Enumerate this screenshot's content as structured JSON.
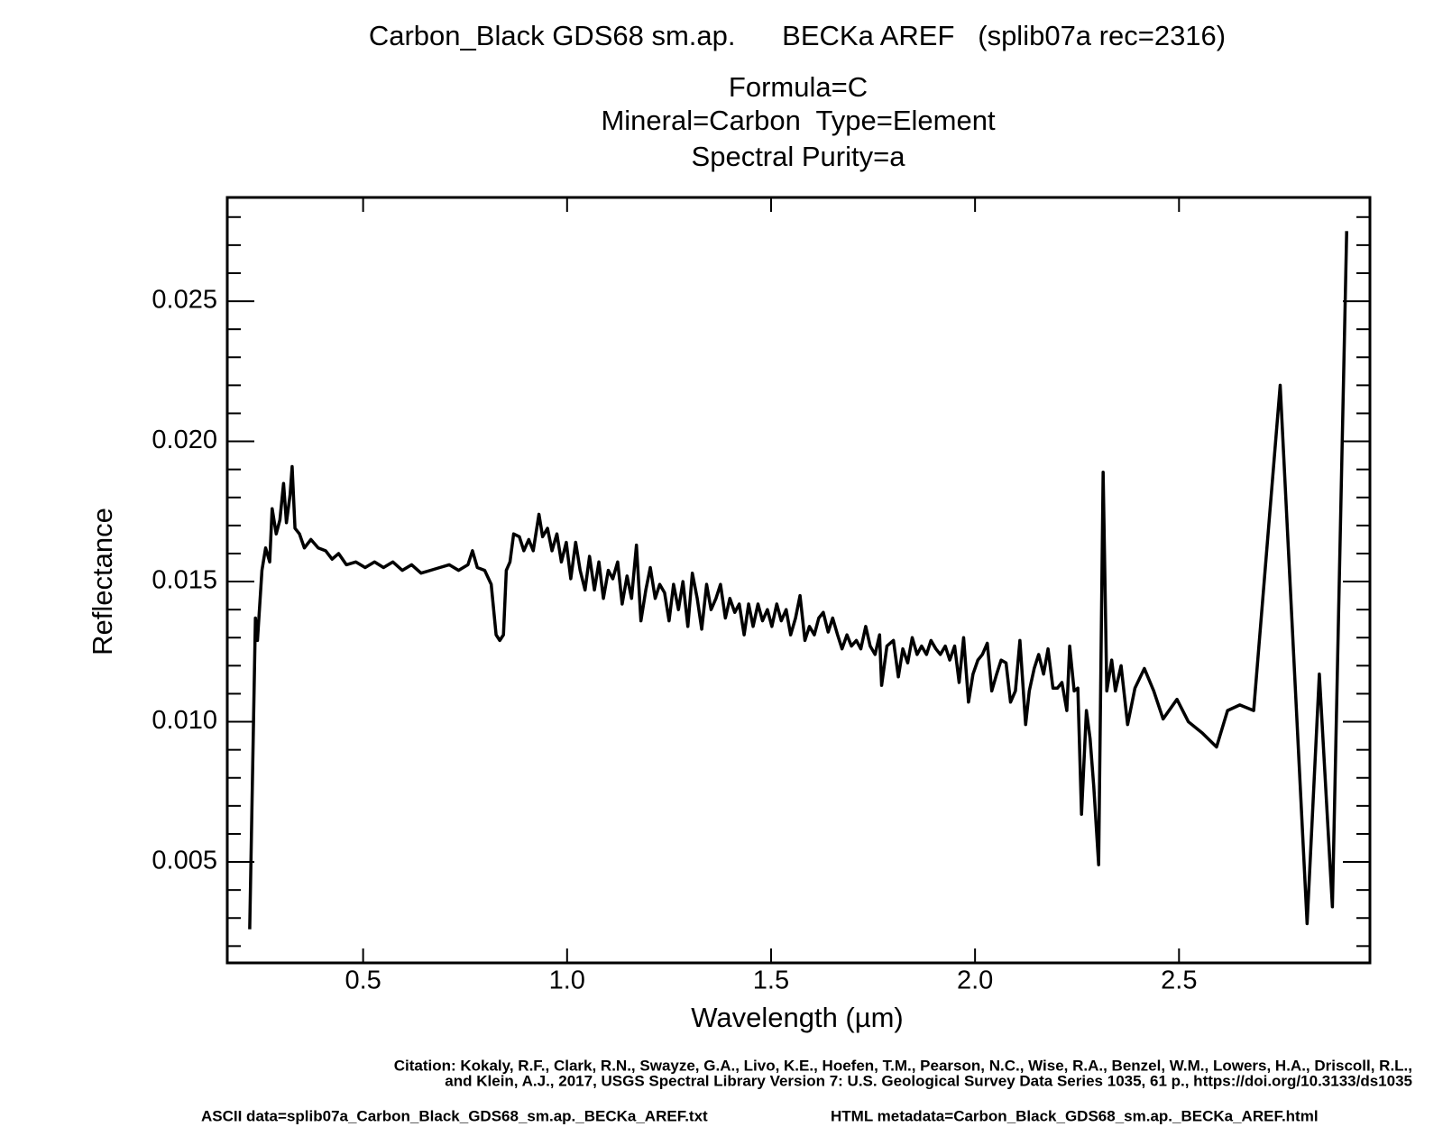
{
  "chart_data": {
    "type": "line",
    "title": "Carbon_Black GDS68 sm.ap.      BECKa AREF   (splib07a rec=2316)",
    "subtitle": [
      "Formula=C",
      "Mineral=Carbon  Type=Element",
      "Spectral Purity=a"
    ],
    "x_label": "Wavelength (µm)",
    "y_label": "Reflectance",
    "citation": [
      "Citation: Kokaly, R.F., Clark, R.N., Swayze, G.A., Livo, K.E., Hoefen, T.M., Pearson, N.C., Wise, R.A., Benzel, W.M., Lowers, H.A., Driscoll, R.L.,",
      "and Klein, A.J., 2017, USGS Spectral Library Version 7: U.S. Geological Survey Data Series 1035, 61 p., https://doi.org/10.3133/ds1035"
    ],
    "ascii_data": "ASCII data=splib07a_Carbon_Black_GDS68_sm.ap._BECKa_AREF.txt",
    "html_metadata": "HTML metadata=Carbon_Black_GDS68_sm.ap._BECKa_AREF.html",
    "color": "#000000",
    "xlim": [
      0.167,
      2.968
    ],
    "ylim": [
      0.0014,
      0.0287
    ],
    "xticks": [
      0.5,
      {
        "value": 1.0,
        "label": "1.0"
      },
      1.5,
      {
        "value": 2.0,
        "label": "2.0"
      },
      2.5
    ],
    "yticks": [
      0.005,
      {
        "value": 0.01,
        "label": "0.010"
      },
      0.015,
      {
        "value": 0.02,
        "label": "0.020"
      },
      0.025
    ],
    "yminorticks": [
      0.002,
      0.003,
      0.004,
      0.006,
      0.007,
      0.008,
      0.009,
      0.011,
      0.012,
      0.013,
      0.014,
      0.016,
      0.017,
      0.018,
      0.019,
      0.021,
      0.022,
      0.023,
      0.024,
      0.026,
      0.027,
      0.028
    ],
    "x": [
      0.222,
      0.236,
      0.241,
      0.252,
      0.261,
      0.271,
      0.277,
      0.287,
      0.296,
      0.305,
      0.312,
      0.321,
      0.326,
      0.333,
      0.344,
      0.356,
      0.372,
      0.39,
      0.408,
      0.424,
      0.44,
      0.459,
      0.482,
      0.505,
      0.528,
      0.55,
      0.573,
      0.596,
      0.619,
      0.642,
      0.665,
      0.688,
      0.711,
      0.734,
      0.757,
      0.768,
      0.78,
      0.798,
      0.814,
      0.826,
      0.835,
      0.844,
      0.851,
      0.86,
      0.869,
      0.883,
      0.894,
      0.906,
      0.917,
      0.931,
      0.94,
      0.952,
      0.963,
      0.975,
      0.986,
      0.998,
      1.009,
      1.021,
      1.032,
      1.044,
      1.055,
      1.067,
      1.078,
      1.089,
      1.101,
      1.112,
      1.124,
      1.135,
      1.147,
      1.158,
      1.17,
      1.181,
      1.193,
      1.204,
      1.216,
      1.227,
      1.239,
      1.25,
      1.261,
      1.273,
      1.284,
      1.296,
      1.307,
      1.319,
      1.33,
      1.342,
      1.353,
      1.365,
      1.376,
      1.388,
      1.399,
      1.411,
      1.422,
      1.434,
      1.445,
      1.456,
      1.468,
      1.479,
      1.491,
      1.502,
      1.514,
      1.525,
      1.537,
      1.548,
      1.56,
      1.571,
      1.583,
      1.594,
      1.606,
      1.617,
      1.628,
      1.64,
      1.651,
      1.663,
      1.674,
      1.686,
      1.697,
      1.709,
      1.72,
      1.732,
      1.743,
      1.755,
      1.766,
      1.771,
      1.784,
      1.8,
      1.812,
      1.823,
      1.835,
      1.846,
      1.858,
      1.869,
      1.881,
      1.892,
      1.904,
      1.915,
      1.927,
      1.938,
      1.95,
      1.961,
      1.972,
      1.984,
      1.995,
      2.007,
      2.018,
      2.03,
      2.041,
      2.053,
      2.064,
      2.076,
      2.087,
      2.099,
      2.11,
      2.124,
      2.133,
      2.145,
      2.156,
      2.168,
      2.179,
      2.191,
      2.202,
      2.213,
      2.225,
      2.232,
      2.243,
      2.252,
      2.261,
      2.273,
      2.282,
      2.291,
      2.303,
      2.314,
      2.323,
      2.335,
      2.344,
      2.358,
      2.374,
      2.392,
      2.415,
      2.438,
      2.461,
      2.495,
      2.523,
      2.557,
      2.592,
      2.619,
      2.649,
      2.683,
      2.748,
      2.814,
      2.844,
      2.876,
      2.911
    ],
    "values": [
      0.0026,
      0.0137,
      0.0129,
      0.0154,
      0.0162,
      0.0157,
      0.0176,
      0.0167,
      0.0172,
      0.0185,
      0.0171,
      0.0181,
      0.0191,
      0.0169,
      0.0167,
      0.0162,
      0.0165,
      0.0162,
      0.0161,
      0.0158,
      0.016,
      0.0156,
      0.0157,
      0.0155,
      0.0157,
      0.0155,
      0.0157,
      0.0154,
      0.0156,
      0.0153,
      0.0154,
      0.0155,
      0.0156,
      0.0154,
      0.0156,
      0.0161,
      0.0155,
      0.0154,
      0.0149,
      0.0131,
      0.0129,
      0.0131,
      0.0154,
      0.0157,
      0.0167,
      0.0166,
      0.0161,
      0.0165,
      0.0161,
      0.0174,
      0.0166,
      0.0169,
      0.0161,
      0.0167,
      0.0157,
      0.0164,
      0.0151,
      0.0164,
      0.0154,
      0.0147,
      0.0159,
      0.0147,
      0.0157,
      0.0144,
      0.0154,
      0.0151,
      0.0157,
      0.0142,
      0.0152,
      0.0144,
      0.0163,
      0.0136,
      0.0147,
      0.0155,
      0.0144,
      0.0149,
      0.0146,
      0.0136,
      0.0149,
      0.014,
      0.015,
      0.0134,
      0.0153,
      0.0144,
      0.0133,
      0.0149,
      0.014,
      0.0144,
      0.0149,
      0.0137,
      0.0144,
      0.0139,
      0.0142,
      0.0131,
      0.0142,
      0.0134,
      0.0142,
      0.0136,
      0.014,
      0.0134,
      0.0142,
      0.0136,
      0.014,
      0.0131,
      0.0137,
      0.0145,
      0.0129,
      0.0134,
      0.0131,
      0.0137,
      0.0139,
      0.0132,
      0.0137,
      0.0131,
      0.0126,
      0.0131,
      0.0127,
      0.0129,
      0.0126,
      0.0134,
      0.0127,
      0.0124,
      0.0131,
      0.0113,
      0.0127,
      0.0129,
      0.0116,
      0.0126,
      0.0121,
      0.013,
      0.0124,
      0.0127,
      0.0124,
      0.0129,
      0.0126,
      0.0124,
      0.0127,
      0.0122,
      0.0127,
      0.0114,
      0.013,
      0.0107,
      0.0117,
      0.0122,
      0.0124,
      0.0128,
      0.0111,
      0.0117,
      0.0122,
      0.0121,
      0.0107,
      0.0111,
      0.0129,
      0.0099,
      0.0111,
      0.0119,
      0.0124,
      0.0117,
      0.0126,
      0.0112,
      0.0112,
      0.0114,
      0.0104,
      0.0127,
      0.0111,
      0.0112,
      0.0067,
      0.0104,
      0.0094,
      0.0077,
      0.0049,
      0.0189,
      0.0111,
      0.0122,
      0.0111,
      0.012,
      0.0099,
      0.0112,
      0.0119,
      0.0111,
      0.0101,
      0.0108,
      0.01,
      0.0096,
      0.0091,
      0.0104,
      0.0106,
      0.0104,
      0.022,
      0.0028,
      0.0117,
      0.0034,
      0.0275
    ]
  }
}
